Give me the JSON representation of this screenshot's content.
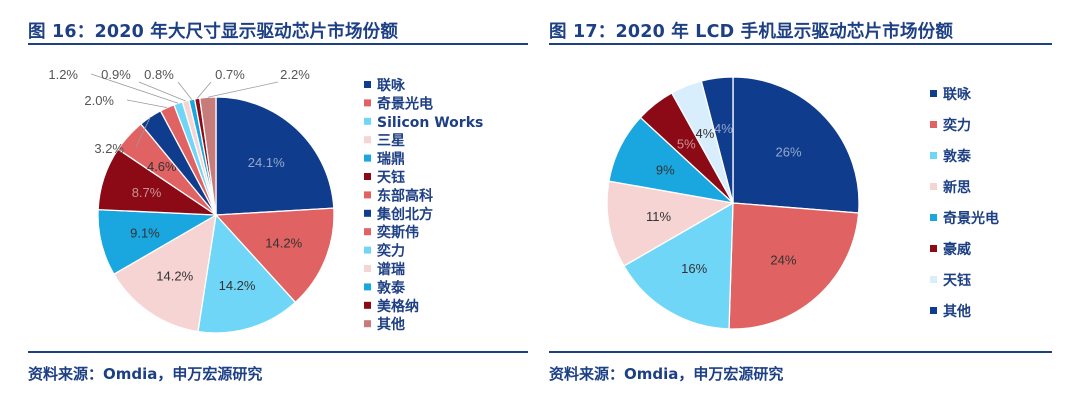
{
  "chart_data": [
    {
      "type": "pie",
      "title": "图 16：2020 年大尺寸显示驱动芯片市场份额",
      "source": "资料来源：Omdia，申万宏源研究",
      "legend_position": "right",
      "slices": [
        {
          "name": "联咏",
          "value": 24.1,
          "label": "24.1%",
          "color": "#0f3c8c"
        },
        {
          "name": "奇景光电",
          "value": 14.2,
          "label": "14.2%",
          "color": "#e06262"
        },
        {
          "name": "Silicon Works",
          "value": 14.2,
          "label": "14.2%",
          "color": "#6fd6f7"
        },
        {
          "name": "三星",
          "value": 14.2,
          "label": "14.2%",
          "color": "#f7d4d4"
        },
        {
          "name": "瑞鼎",
          "value": 9.1,
          "label": "9.1%",
          "color": "#1aa6df"
        },
        {
          "name": "天钰",
          "value": 8.7,
          "label": "8.7%",
          "color": "#8b0a16"
        },
        {
          "name": "东部高科",
          "value": 4.6,
          "label": "4.6%",
          "color": "#e06262"
        },
        {
          "name": "集创北方",
          "value": 3.2,
          "label": "3.2%",
          "color": "#0f3c8c"
        },
        {
          "name": "奕斯伟",
          "value": 2.0,
          "label": "2.0%",
          "color": "#e06262"
        },
        {
          "name": "奕力",
          "value": 1.2,
          "label": "1.2%",
          "color": "#6fd6f7"
        },
        {
          "name": "谱瑞",
          "value": 0.9,
          "label": "0.9%",
          "color": "#f7d4d4"
        },
        {
          "name": "敦泰",
          "value": 0.8,
          "label": "0.8%",
          "color": "#1aa6df"
        },
        {
          "name": "美格纳",
          "value": 0.7,
          "label": "0.7%",
          "color": "#8b0a16"
        },
        {
          "name": "其他",
          "value": 2.2,
          "label": "2.2%",
          "color": "#c77b7b"
        }
      ]
    },
    {
      "type": "pie",
      "title": "图 17：2020 年 LCD 手机显示驱动芯片市场份额",
      "source": "资料来源：Omdia，申万宏源研究",
      "legend_position": "right",
      "slices": [
        {
          "name": "联咏",
          "value": 26,
          "label": "26%",
          "color": "#0f3c8c"
        },
        {
          "name": "奕力",
          "value": 24,
          "label": "24%",
          "color": "#e06262"
        },
        {
          "name": "敦泰",
          "value": 16,
          "label": "16%",
          "color": "#6fd6f7"
        },
        {
          "name": "新思",
          "value": 11,
          "label": "11%",
          "color": "#f7d4d4"
        },
        {
          "name": "奇景光电",
          "value": 9,
          "label": "9%",
          "color": "#1aa6df"
        },
        {
          "name": "豪威",
          "value": 5,
          "label": "5%",
          "color": "#8b0a16"
        },
        {
          "name": "天钰",
          "value": 4,
          "label": "4%",
          "color": "#d9eefc"
        },
        {
          "name": "其他",
          "value": 4,
          "label": "4%",
          "color": "#0f3c8c"
        }
      ]
    }
  ]
}
